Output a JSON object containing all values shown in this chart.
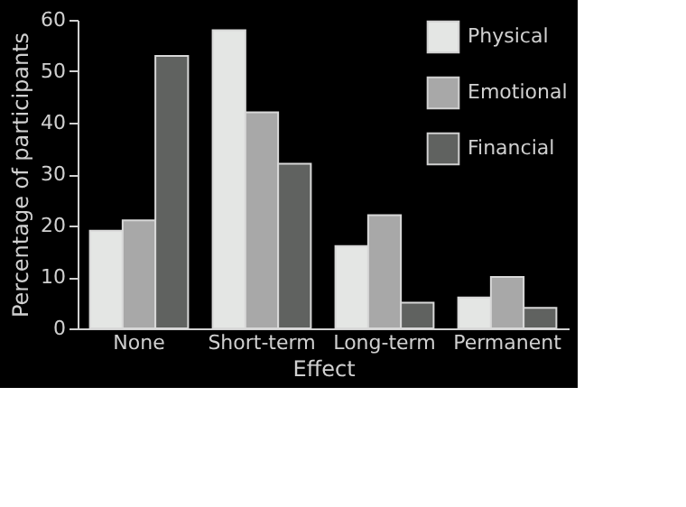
{
  "chart_data": {
    "type": "bar",
    "xlabel": "Effect",
    "ylabel": "Percentage of participants",
    "categories": [
      "None",
      "Short-term",
      "Long-term",
      "Permanent"
    ],
    "series": [
      {
        "name": "Physical",
        "color": "#e4e6e4",
        "values": [
          19,
          58,
          16,
          6
        ]
      },
      {
        "name": "Emotional",
        "color": "#a8a8a8",
        "values": [
          21,
          42,
          22,
          10
        ]
      },
      {
        "name": "Financial",
        "color": "#606260",
        "values": [
          53,
          32,
          5,
          4
        ]
      }
    ],
    "ylim": [
      0,
      60
    ],
    "yticks": [
      0,
      10,
      20,
      30,
      40,
      50,
      60
    ],
    "grid": false,
    "legend": "top right"
  }
}
